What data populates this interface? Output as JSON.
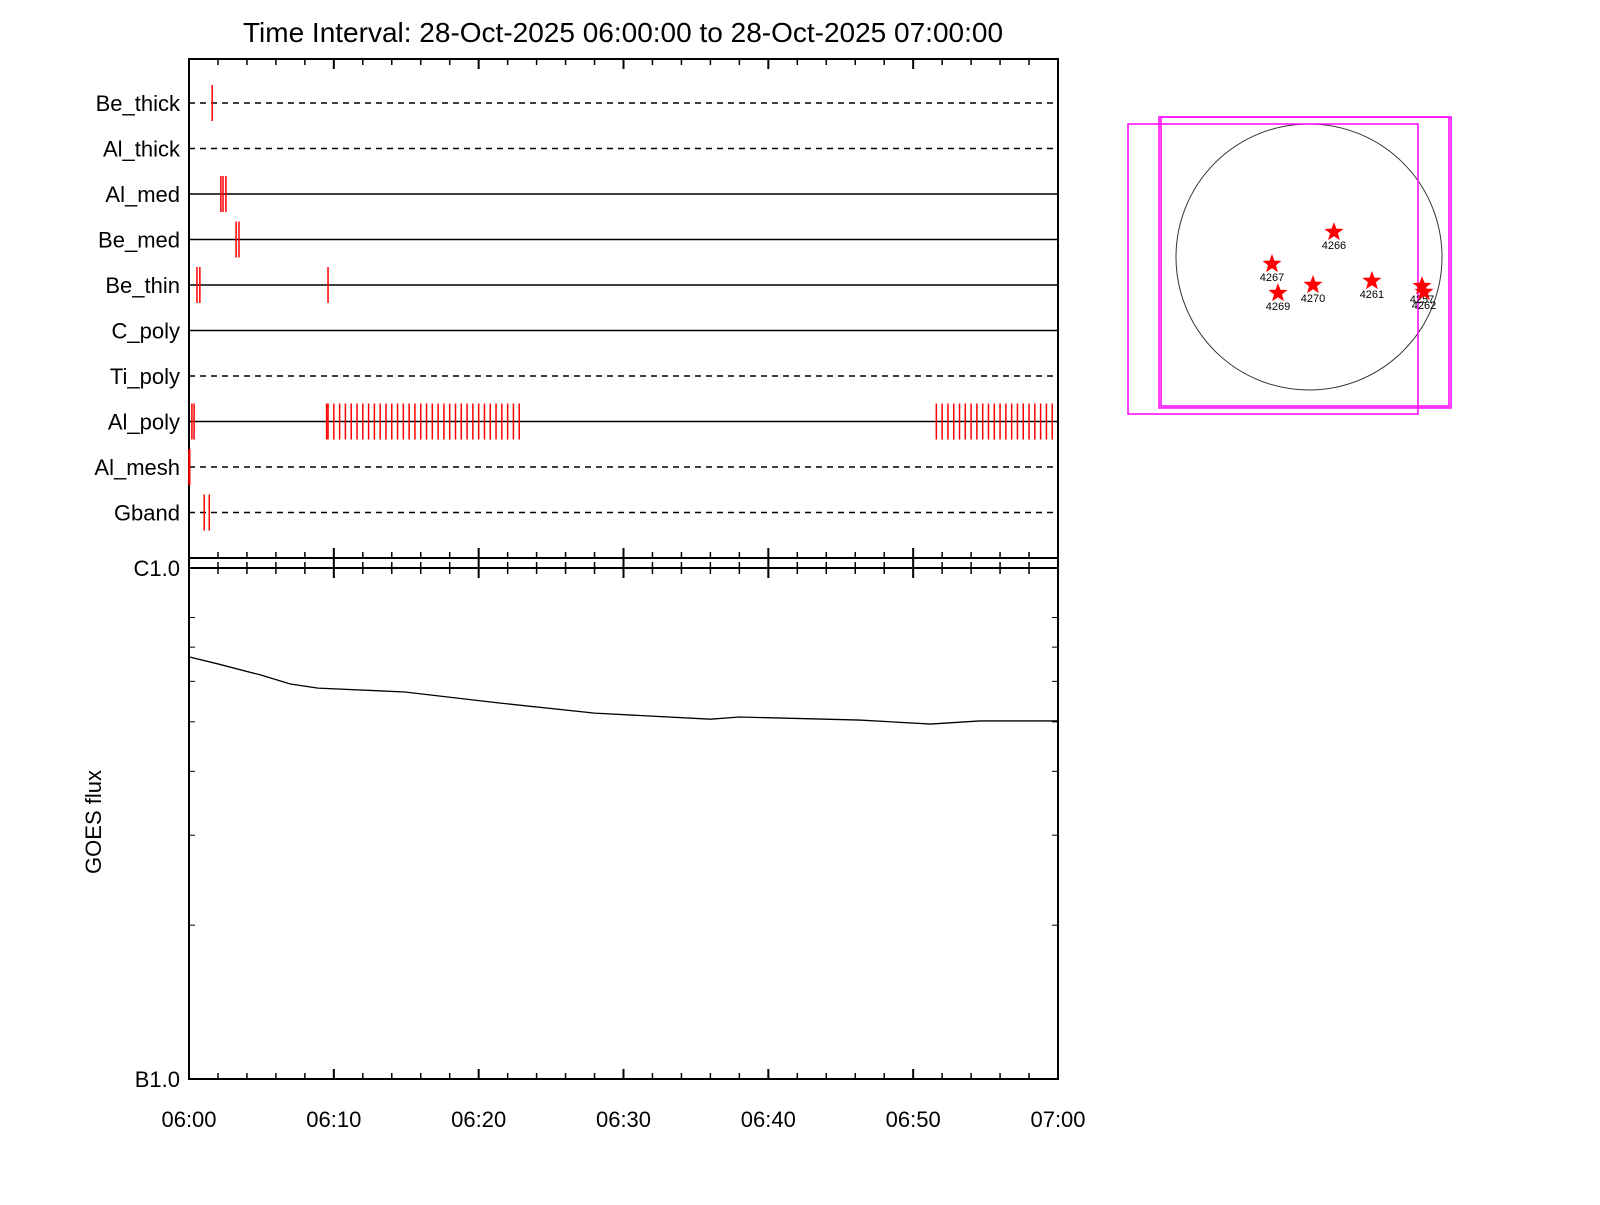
{
  "title": "Time Interval: 28-Oct-2025 06:00:00 to 28-Oct-2025 07:00:00",
  "chart_data": [
    {
      "type": "events",
      "color": "#ff0000",
      "xlim": [
        0,
        60
      ],
      "xticks": [
        0,
        10,
        20,
        30,
        40,
        50,
        60
      ],
      "xminorticks": [
        2,
        4,
        6,
        8,
        12,
        14,
        16,
        18,
        22,
        24,
        26,
        28,
        32,
        34,
        36,
        38,
        42,
        44,
        46,
        48,
        52,
        54,
        56,
        58
      ],
      "rows": [
        {
          "name": "Be_thick",
          "line": "dashed",
          "times": [
            1.6
          ]
        },
        {
          "name": "Al_thick",
          "line": "dashed",
          "times": []
        },
        {
          "name": "Al_med",
          "line": "solid",
          "times": [
            2.2,
            2.35,
            2.55
          ]
        },
        {
          "name": "Be_med",
          "line": "solid",
          "times": [
            3.25,
            3.45
          ]
        },
        {
          "name": "Be_thin",
          "line": "solid",
          "times": [
            0.55,
            0.75,
            9.6
          ]
        },
        {
          "name": "C_poly",
          "line": "solid",
          "times": []
        },
        {
          "name": "Ti_poly",
          "line": "dashed",
          "times": []
        },
        {
          "name": "Al_poly",
          "line": "solid",
          "times": [
            0.2,
            0.35,
            9.5,
            9.6,
            10.0,
            10.4,
            10.8,
            11.2,
            11.6,
            12.0,
            12.4,
            12.8,
            13.2,
            13.6,
            14.0,
            14.4,
            14.8,
            15.2,
            15.6,
            16.0,
            16.4,
            16.8,
            17.2,
            17.6,
            18.0,
            18.4,
            18.8,
            19.2,
            19.6,
            20.0,
            20.4,
            20.8,
            21.2,
            21.6,
            22.0,
            22.4,
            22.8,
            51.6,
            52.0,
            52.4,
            52.8,
            53.2,
            53.6,
            54.0,
            54.4,
            54.8,
            55.2,
            55.6,
            56.0,
            56.4,
            56.8,
            57.2,
            57.6,
            58.0,
            58.4,
            58.8,
            59.2,
            59.6
          ]
        },
        {
          "name": "Al_mesh",
          "line": "dashed",
          "times": [
            0,
            0.05
          ]
        },
        {
          "name": "Gband",
          "line": "dashed",
          "times": [
            1.05,
            1.4
          ]
        }
      ]
    },
    {
      "type": "line",
      "y_label": "GOES flux",
      "color": "#000000",
      "log_scale": true,
      "xlim": [
        0,
        60
      ],
      "xticks": [
        {
          "value": 0,
          "label": "06:00"
        },
        {
          "value": 10,
          "label": "06:10"
        },
        {
          "value": 20,
          "label": "06:20"
        },
        {
          "value": 30,
          "label": "06:30"
        },
        {
          "value": 40,
          "label": "06:40"
        },
        {
          "value": 50,
          "label": "06:50"
        },
        {
          "value": 60,
          "label": "07:00"
        }
      ],
      "xminorticks": [
        2,
        4,
        6,
        8,
        12,
        14,
        16,
        18,
        22,
        24,
        26,
        28,
        32,
        34,
        36,
        38,
        42,
        44,
        46,
        48,
        52,
        54,
        56,
        58
      ],
      "ylim": [
        1e-07,
        1e-06
      ],
      "yticks": [
        {
          "value": 1e-07,
          "label": "B1.0"
        },
        {
          "value": 1e-06,
          "label": "C1.0"
        }
      ],
      "yminorticks": [
        2e-07,
        3e-07,
        4e-07,
        5e-07,
        6e-07,
        7e-07,
        8e-07
      ],
      "x": [
        0,
        2,
        4.9,
        7,
        8.9,
        14.9,
        21.5,
        28,
        36,
        38,
        46.3,
        51.2,
        54.6,
        60
      ],
      "values": [
        6.7e-07,
        6.49e-07,
        6.18e-07,
        5.93e-07,
        5.82e-07,
        5.72e-07,
        5.44e-07,
        5.2e-07,
        5.06e-07,
        5.11e-07,
        5.04e-07,
        4.95e-07,
        5.02e-07,
        5.02e-07
      ]
    },
    {
      "type": "map",
      "rsun": 970,
      "star_color": "#ff0000",
      "box_color": "#ff00ff",
      "boxes": [
        [
          -1320,
          970,
          795,
          -1145
        ],
        [
          -1094,
          1021,
          1036,
          -1101
        ],
        [
          -1079,
          1021,
          1021,
          -1087
        ]
      ],
      "regions": [
        {
          "label": "4266",
          "x": 182,
          "y": 182
        },
        {
          "label": "4267",
          "x": -270,
          "y": -51
        },
        {
          "label": "4269",
          "x": -226,
          "y": -263
        },
        {
          "label": "4270",
          "x": 29,
          "y": -204
        },
        {
          "label": "4261",
          "x": 459,
          "y": -175
        },
        {
          "label": "4257",
          "x": 824,
          "y": -212
        },
        {
          "label": "4262",
          "x": 839,
          "y": -255
        }
      ]
    }
  ]
}
